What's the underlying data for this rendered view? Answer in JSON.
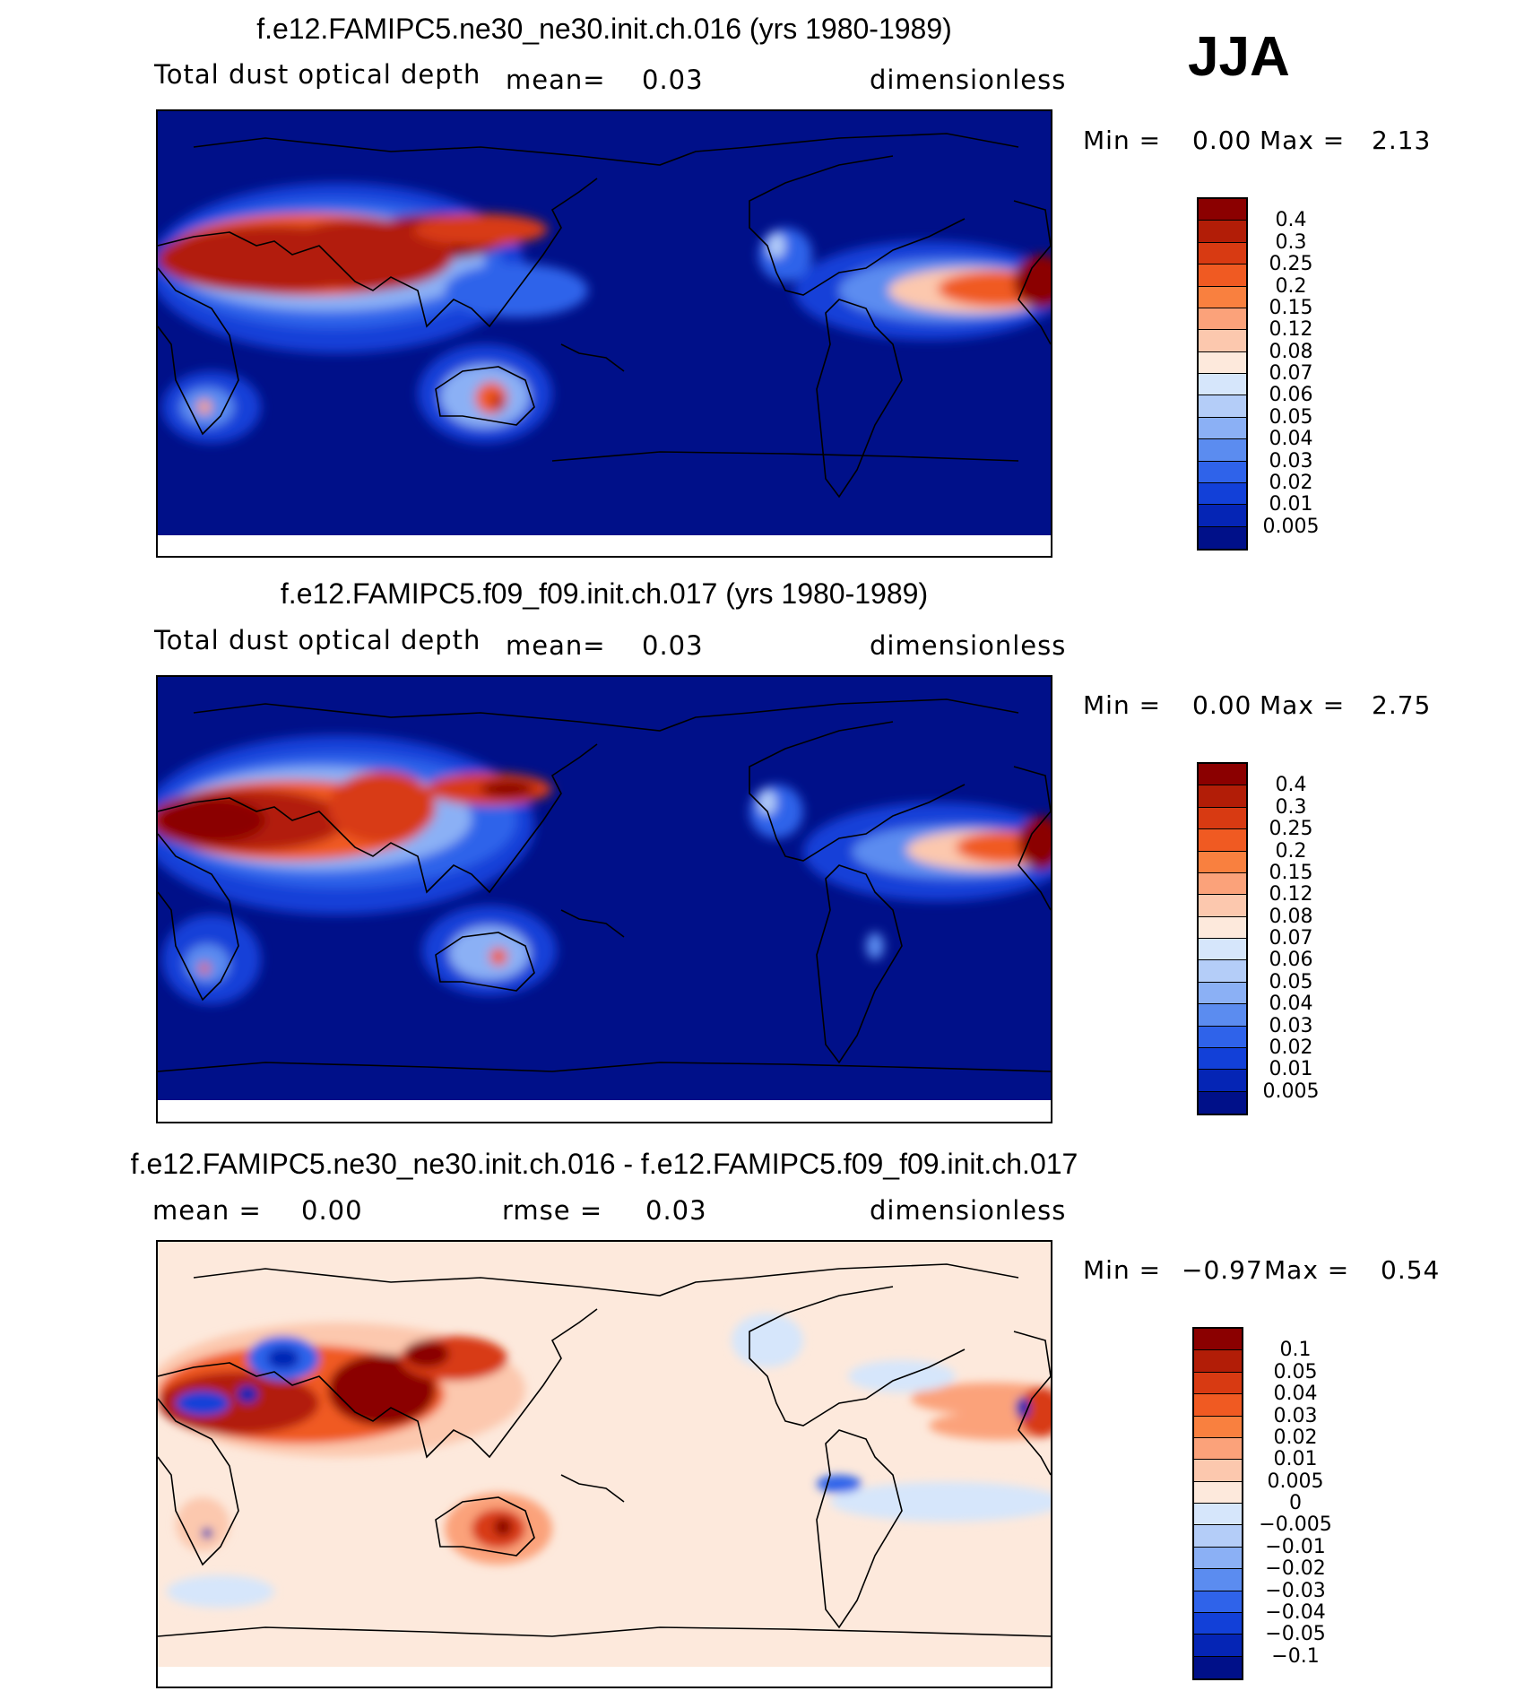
{
  "season": "JJA",
  "panels": [
    {
      "title": "f.e12.FAMIPC5.ne30_ne30.init.ch.016 (yrs 1980-1989)",
      "variable": "Total dust optical depth",
      "stat1_label": "mean=",
      "stat1_value": "0.03",
      "stat2_label": "",
      "stat2_value": "",
      "units": "dimensionless",
      "min_label": "Min =",
      "min_value": "0.00",
      "max_label": "Max =",
      "max_value": "2.13",
      "colorbar": {
        "labels": [
          "0.4",
          "0.3",
          "0.25",
          "0.2",
          "0.15",
          "0.12",
          "0.08",
          "0.07",
          "0.06",
          "0.05",
          "0.04",
          "0.03",
          "0.02",
          "0.01",
          "0.005"
        ],
        "colors": [
          "#8b0000",
          "#b21d07",
          "#d83a12",
          "#f05a22",
          "#f9803f",
          "#fba27a",
          "#fcc8ae",
          "#fde9dc",
          "#d6e6fb",
          "#b4cdf8",
          "#8bb0f5",
          "#5b8cf0",
          "#2f63ea",
          "#1240d8",
          "#0525b5",
          "#001089"
        ]
      }
    },
    {
      "title": "f.e12.FAMIPC5.f09_f09.init.ch.017 (yrs 1980-1989)",
      "variable": "Total dust optical depth",
      "stat1_label": "mean=",
      "stat1_value": "0.03",
      "stat2_label": "",
      "stat2_value": "",
      "units": "dimensionless",
      "min_label": "Min =",
      "min_value": "0.00",
      "max_label": "Max =",
      "max_value": "2.75",
      "colorbar": {
        "labels": [
          "0.4",
          "0.3",
          "0.25",
          "0.2",
          "0.15",
          "0.12",
          "0.08",
          "0.07",
          "0.06",
          "0.05",
          "0.04",
          "0.03",
          "0.02",
          "0.01",
          "0.005"
        ],
        "colors": [
          "#8b0000",
          "#b21d07",
          "#d83a12",
          "#f05a22",
          "#f9803f",
          "#fba27a",
          "#fcc8ae",
          "#fde9dc",
          "#d6e6fb",
          "#b4cdf8",
          "#8bb0f5",
          "#5b8cf0",
          "#2f63ea",
          "#1240d8",
          "#0525b5",
          "#001089"
        ]
      }
    },
    {
      "title": "f.e12.FAMIPC5.ne30_ne30.init.ch.016 - f.e12.FAMIPC5.f09_f09.init.ch.017",
      "variable": "",
      "stat1_label": "mean =",
      "stat1_value": "0.00",
      "stat2_label": "rmse =",
      "stat2_value": "0.03",
      "units": "dimensionless",
      "min_label": "Min =",
      "min_value": "−0.97",
      "max_label": "Max =",
      "max_value": "0.54",
      "colorbar": {
        "labels": [
          "0.1",
          "0.05",
          "0.04",
          "0.03",
          "0.02",
          "0.01",
          "0.005",
          "0",
          "−0.005",
          "−0.01",
          "−0.02",
          "−0.03",
          "−0.04",
          "−0.05",
          "−0.1"
        ],
        "colors": [
          "#8b0000",
          "#b21d07",
          "#d83a12",
          "#f05a22",
          "#f9803f",
          "#fba27a",
          "#fcc8ae",
          "#fde9dc",
          "#d6e6fb",
          "#b4cdf8",
          "#8bb0f5",
          "#5b8cf0",
          "#2f63ea",
          "#1240d8",
          "#0525b5",
          "#001089"
        ]
      }
    }
  ]
}
